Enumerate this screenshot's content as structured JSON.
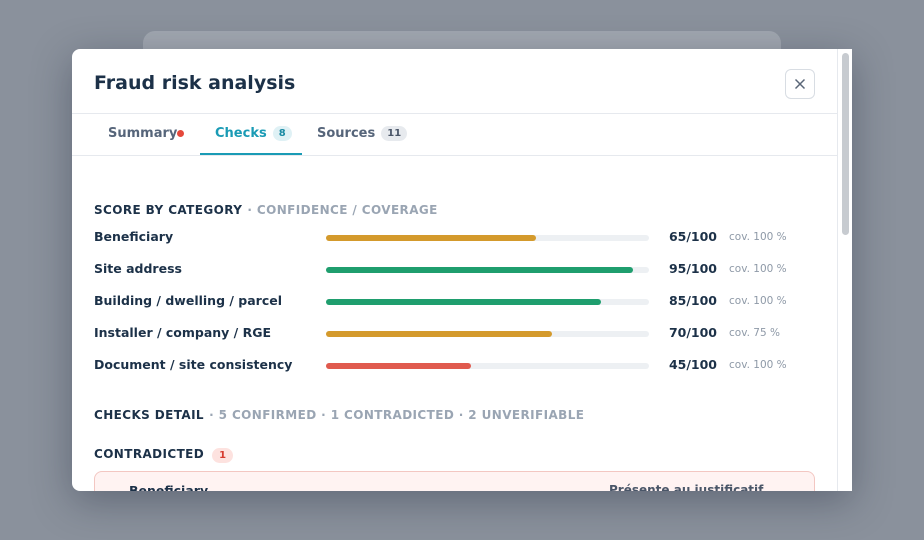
{
  "modal": {
    "title": "Fraud risk analysis"
  },
  "tabs": [
    {
      "label": "Summary"
    },
    {
      "label": "Checks",
      "count": 8
    },
    {
      "label": "Sources",
      "count": 11
    }
  ],
  "score_section": {
    "title": "SCORE BY CATEGORY",
    "subtitle": "· CONFIDENCE / COVERAGE",
    "score_range": [
      0,
      100
    ],
    "categories": [
      {
        "name": "Beneficiary",
        "score": {
          "value": 65,
          "label": "65/100"
        },
        "coverage": "cov. 100 %",
        "color": "#d49a2c"
      },
      {
        "name": "Site address",
        "score": {
          "value": 95,
          "label": "95/100"
        },
        "coverage": "cov. 100 %",
        "color": "#1f9e6e"
      },
      {
        "name": "Building / dwelling / parcel",
        "score": {
          "value": 85,
          "label": "85/100"
        },
        "coverage": "cov. 100 %",
        "color": "#1f9e6e"
      },
      {
        "name": "Installer / company / RGE",
        "score": {
          "value": 70,
          "label": "70/100"
        },
        "coverage": "cov. 75 %",
        "color": "#d49a2c"
      },
      {
        "name": "Document / site consistency",
        "score": {
          "value": 45,
          "label": "45/100"
        },
        "coverage": "cov. 100 %",
        "color": "#e05a4e"
      }
    ]
  },
  "checks_detail": {
    "title": "CHECKS DETAIL",
    "summary": "· 5 CONFIRMED · 1 CONTRADICTED · 2 UNVERIFIABLE"
  },
  "contradicted": {
    "title": "CONTRADICTED",
    "count": 1,
    "items": [
      {
        "category": "Beneficiary",
        "status": "Présente au justificatif"
      }
    ]
  }
}
